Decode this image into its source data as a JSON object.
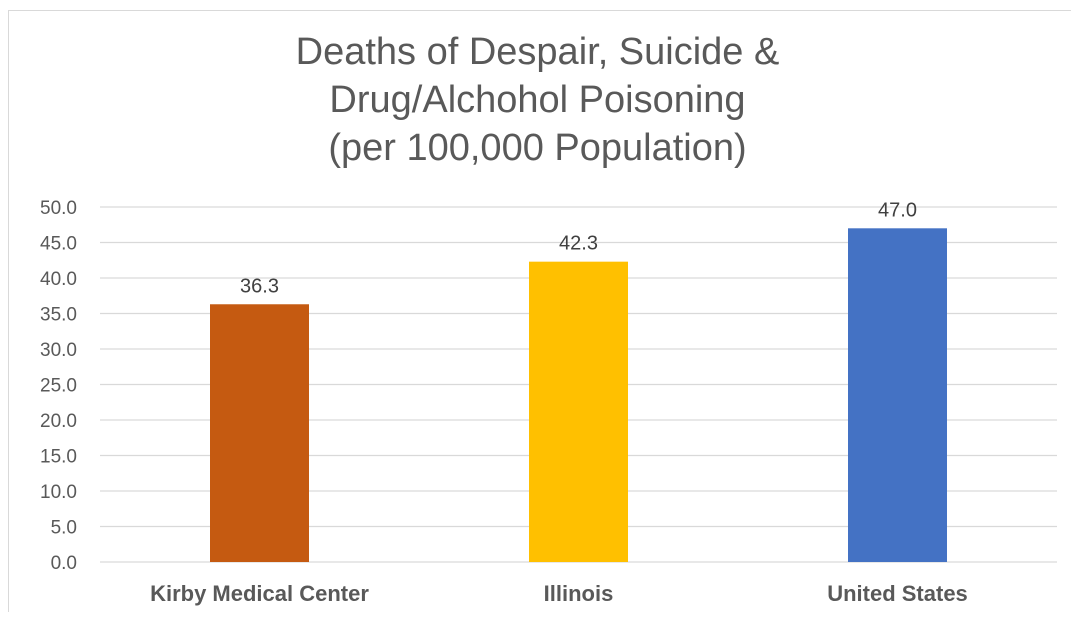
{
  "chart_data": {
    "type": "bar",
    "title_lines": [
      "Deaths of Despair, Suicide &",
      "Drug/Alchohol Poisoning",
      "(per 100,000 Population)"
    ],
    "categories": [
      "Kirby Medical Center",
      "Illinois",
      "United States"
    ],
    "values": [
      36.3,
      42.3,
      47.0
    ],
    "value_labels": [
      "36.3",
      "42.3",
      "47.0"
    ],
    "bar_colors": [
      "#c55a11",
      "#ffc000",
      "#4472c4"
    ],
    "ylim": [
      0,
      50
    ],
    "y_ticks": [
      0,
      5,
      10,
      15,
      20,
      25,
      30,
      35,
      40,
      45,
      50
    ],
    "y_tick_labels": [
      "0.0",
      "5.0",
      "10.0",
      "15.0",
      "20.0",
      "25.0",
      "30.0",
      "35.0",
      "40.0",
      "45.0",
      "50.0"
    ],
    "grid": true,
    "legend": "none",
    "xlabel": "",
    "ylabel": ""
  }
}
